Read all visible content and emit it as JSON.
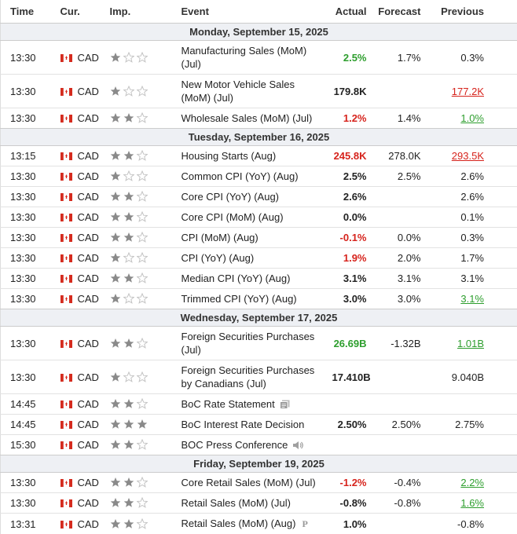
{
  "columns": [
    "Time",
    "Cur.",
    "Imp.",
    "Event",
    "Actual",
    "Forecast",
    "Previous"
  ],
  "days": [
    {
      "date": "Monday, September 15, 2025",
      "events": [
        {
          "time": "13:30",
          "currency": "CAD",
          "importance": 1,
          "event": "Manufacturing Sales (MoM) (Jul)",
          "actual": "2.5%",
          "actual_trend": "up",
          "forecast": "1.7%",
          "previous": "0.3%"
        },
        {
          "time": "13:30",
          "currency": "CAD",
          "importance": 1,
          "event": "New Motor Vehicle Sales (MoM) (Jul)",
          "actual": "179.8K",
          "previous": "177.2K",
          "previous_revision": "down"
        },
        {
          "time": "13:30",
          "currency": "CAD",
          "importance": 2,
          "event": "Wholesale Sales (MoM) (Jul)",
          "actual": "1.2%",
          "actual_trend": "down",
          "forecast": "1.4%",
          "previous": "1.0%",
          "previous_revision": "up"
        }
      ]
    },
    {
      "date": "Tuesday, September 16, 2025",
      "events": [
        {
          "time": "13:15",
          "currency": "CAD",
          "importance": 2,
          "event": "Housing Starts (Aug)",
          "actual": "245.8K",
          "actual_trend": "down",
          "forecast": "278.0K",
          "previous": "293.5K",
          "previous_revision": "down"
        },
        {
          "time": "13:30",
          "currency": "CAD",
          "importance": 1,
          "event": "Common CPI (YoY) (Aug)",
          "actual": "2.5%",
          "forecast": "2.5%",
          "previous": "2.6%"
        },
        {
          "time": "13:30",
          "currency": "CAD",
          "importance": 2,
          "event": "Core CPI (YoY) (Aug)",
          "actual": "2.6%",
          "previous": "2.6%"
        },
        {
          "time": "13:30",
          "currency": "CAD",
          "importance": 2,
          "event": "Core CPI (MoM) (Aug)",
          "actual": "0.0%",
          "previous": "0.1%"
        },
        {
          "time": "13:30",
          "currency": "CAD",
          "importance": 2,
          "event": "CPI (MoM) (Aug)",
          "actual": "-0.1%",
          "actual_trend": "down",
          "forecast": "0.0%",
          "previous": "0.3%"
        },
        {
          "time": "13:30",
          "currency": "CAD",
          "importance": 1,
          "event": "CPI (YoY) (Aug)",
          "actual": "1.9%",
          "actual_trend": "down",
          "forecast": "2.0%",
          "previous": "1.7%"
        },
        {
          "time": "13:30",
          "currency": "CAD",
          "importance": 2,
          "event": "Median CPI (YoY) (Aug)",
          "actual": "3.1%",
          "forecast": "3.1%",
          "previous": "3.1%"
        },
        {
          "time": "13:30",
          "currency": "CAD",
          "importance": 1,
          "event": "Trimmed CPI (YoY) (Aug)",
          "actual": "3.0%",
          "forecast": "3.0%",
          "previous": "3.1%",
          "previous_revision": "up"
        }
      ]
    },
    {
      "date": "Wednesday, September 17, 2025",
      "events": [
        {
          "time": "13:30",
          "currency": "CAD",
          "importance": 2,
          "event": "Foreign Securities Purchases (Jul)",
          "actual": "26.69B",
          "actual_trend": "up",
          "forecast": "-1.32B",
          "previous": "1.01B",
          "previous_revision": "up"
        },
        {
          "time": "13:30",
          "currency": "CAD",
          "importance": 1,
          "event": "Foreign Securities Purchases by Canadians (Jul)",
          "actual": "17.410B",
          "previous": "9.040B"
        },
        {
          "time": "14:45",
          "currency": "CAD",
          "importance": 2,
          "event": "BoC Rate Statement",
          "icon": "document"
        },
        {
          "time": "14:45",
          "currency": "CAD",
          "importance": 3,
          "event": "BoC Interest Rate Decision",
          "actual": "2.50%",
          "forecast": "2.50%",
          "previous": "2.75%"
        },
        {
          "time": "15:30",
          "currency": "CAD",
          "importance": 2,
          "event": "BOC Press Conference",
          "icon": "speaker"
        }
      ]
    },
    {
      "date": "Friday, September 19, 2025",
      "events": [
        {
          "time": "13:30",
          "currency": "CAD",
          "importance": 2,
          "event": "Core Retail Sales (MoM) (Jul)",
          "actual": "-1.2%",
          "actual_trend": "down",
          "forecast": "-0.4%",
          "previous": "2.2%",
          "previous_revision": "up"
        },
        {
          "time": "13:30",
          "currency": "CAD",
          "importance": 2,
          "event": "Retail Sales (MoM) (Jul)",
          "actual": "-0.8%",
          "forecast": "-0.8%",
          "previous": "1.6%",
          "previous_revision": "up"
        },
        {
          "time": "13:31",
          "currency": "CAD",
          "importance": 2,
          "event": "Retail Sales (MoM) (Aug)",
          "badge": "P",
          "actual": "1.0%",
          "previous": "-0.8%"
        }
      ]
    }
  ]
}
